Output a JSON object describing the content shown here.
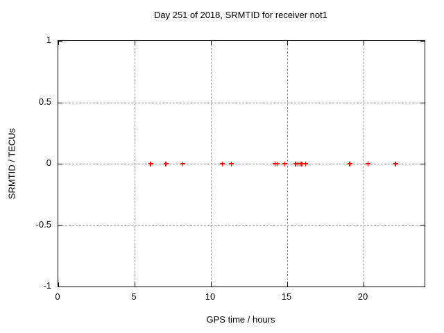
{
  "title": "Day 251 of 2018, SRMTID for receiver not1",
  "colors": {
    "background": "#ffffff",
    "border": "#000000",
    "grid": "#9b9b9b",
    "marker": "#ff0000",
    "text": "#000000"
  },
  "chart_data": {
    "type": "scatter",
    "title": "Day 251 of 2018, SRMTID for receiver not1",
    "xlabel": "GPS time / hours",
    "ylabel": "SRMTID / TECUs",
    "xlim": [
      0,
      24
    ],
    "ylim": [
      -1,
      1
    ],
    "x_tick_values": [
      0,
      5,
      10,
      15,
      20
    ],
    "x_tick_labels": [
      "0",
      "5",
      "10",
      "15",
      "20"
    ],
    "y_tick_values": [
      1,
      0.5,
      0,
      -0.5,
      -1
    ],
    "y_tick_labels": [
      "1",
      "0.5",
      "0",
      "-0.5",
      "-1"
    ],
    "grid": true,
    "legend": "none",
    "marker_style": "plus",
    "marker_color": "#ff0000",
    "series": [
      {
        "name": "SRMTID",
        "x": [
          6.05,
          7.05,
          8.15,
          10.75,
          11.35,
          14.2,
          14.35,
          14.85,
          15.55,
          15.7,
          15.85,
          15.95,
          16.2,
          19.1,
          20.3,
          22.1
        ],
        "y": [
          0,
          0,
          0,
          0,
          0,
          0,
          0,
          0,
          0,
          0,
          0,
          0,
          0,
          0,
          0,
          0
        ]
      }
    ]
  }
}
